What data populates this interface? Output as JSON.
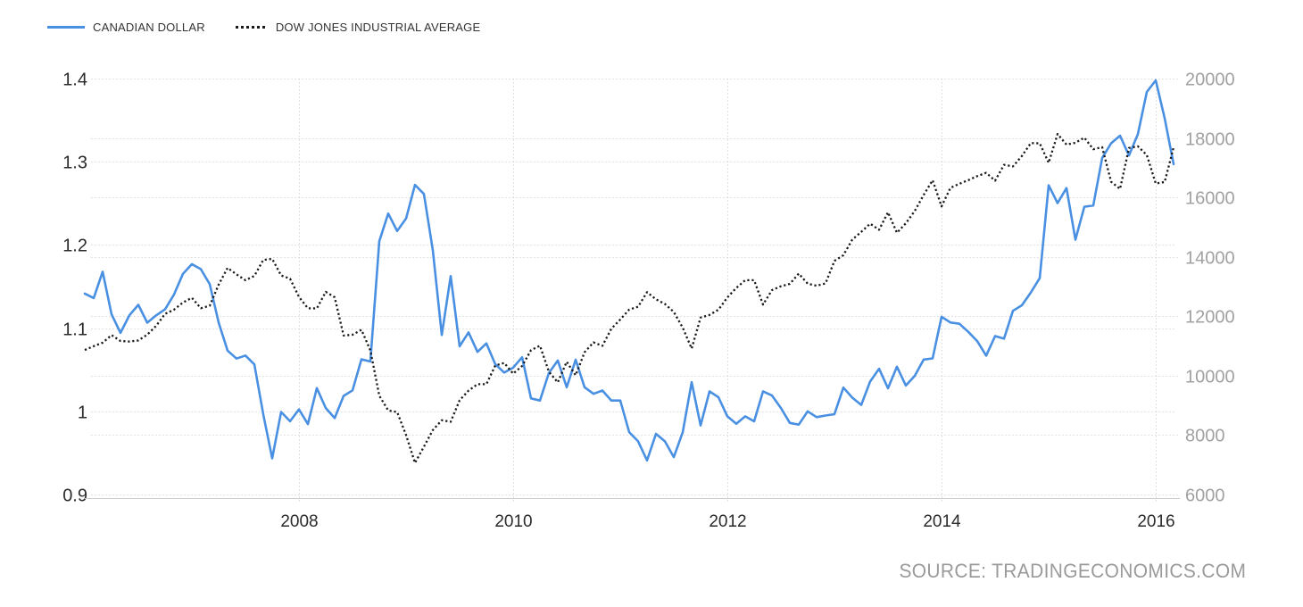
{
  "legend": {
    "items": [
      {
        "label": "CANADIAN DOLLAR",
        "style": "solid",
        "color": "#4a90e2"
      },
      {
        "label": "DOW JONES INDUSTRIAL AVERAGE",
        "style": "dotted",
        "color": "#1a1a1a"
      }
    ]
  },
  "source": {
    "text": "SOURCE: TRADINGECONOMICS.COM"
  },
  "chart_data": {
    "type": "line",
    "title": "",
    "xlabel": "",
    "ylabel_left": "",
    "ylabel_right": "",
    "grid": true,
    "legend_position": "top-left",
    "x_start": "2006-01",
    "x_end": "2016-03",
    "x_interval": "monthly",
    "x_ticks": [
      {
        "label": "2008",
        "month_index": 24
      },
      {
        "label": "2010",
        "month_index": 48
      },
      {
        "label": "2012",
        "month_index": 72
      },
      {
        "label": "2014",
        "month_index": 96
      },
      {
        "label": "2016",
        "month_index": 120
      }
    ],
    "left_axis": {
      "range": [
        0.9,
        1.4
      ],
      "ticks": [
        {
          "label": "1.4",
          "value": 1.4
        },
        {
          "label": "1.3",
          "value": 1.3
        },
        {
          "label": "1.2",
          "value": 1.2
        },
        {
          "label": "1.1",
          "value": 1.1
        },
        {
          "label": "1",
          "value": 1.0
        },
        {
          "label": "0.9",
          "value": 0.9
        }
      ]
    },
    "right_axis": {
      "range": [
        6000,
        20000
      ],
      "ticks": [
        {
          "label": "20000",
          "value": 20000
        },
        {
          "label": "18000",
          "value": 18000
        },
        {
          "label": "16000",
          "value": 16000
        },
        {
          "label": "14000",
          "value": 14000
        },
        {
          "label": "12000",
          "value": 12000
        },
        {
          "label": "10000",
          "value": 10000
        },
        {
          "label": "8000",
          "value": 8000
        },
        {
          "label": "6000",
          "value": 6000
        }
      ]
    },
    "series": [
      {
        "name": "CANADIAN DOLLAR",
        "slug": "canadian-dollar",
        "axis": "left",
        "color": "#4a90e2",
        "style": "solid",
        "values": [
          1.1415,
          1.1362,
          1.1678,
          1.1166,
          1.0943,
          1.1155,
          1.128,
          1.1065,
          1.1153,
          1.1227,
          1.1405,
          1.1653,
          1.1769,
          1.1709,
          1.1529,
          1.1066,
          1.073,
          1.0634,
          1.0671,
          1.0564,
          0.9963,
          0.9435,
          0.9993,
          0.9881,
          1.0022,
          0.9847,
          1.0279,
          1.004,
          0.9918,
          1.0186,
          1.0252,
          1.0626,
          1.0599,
          1.2045,
          1.2378,
          1.2167,
          1.2318,
          1.2722,
          1.2613,
          1.1935,
          1.0917,
          1.1625,
          1.0782,
          1.0949,
          1.0715,
          1.0816,
          1.0565,
          1.0466,
          1.0525,
          1.065,
          1.0156,
          1.013,
          1.046,
          1.061,
          1.029,
          1.062,
          1.029,
          1.021,
          1.025,
          1.013,
          1.013,
          0.975,
          0.964,
          0.941,
          0.973,
          0.964,
          0.945,
          0.975,
          1.035,
          0.983,
          1.024,
          1.017,
          0.994,
          0.985,
          0.994,
          0.988,
          1.024,
          1.019,
          1.004,
          0.986,
          0.984,
          1.0,
          0.993,
          0.995,
          0.9966,
          1.0285,
          1.0164,
          1.0077,
          1.0358,
          1.0512,
          1.0277,
          1.0536,
          1.031,
          1.0427,
          1.0622,
          1.0636,
          1.1136,
          1.1068,
          1.1053,
          1.0955,
          1.0843,
          1.067,
          1.0905,
          1.0873,
          1.1208,
          1.1275,
          1.1428,
          1.1601,
          1.2717,
          1.2503,
          1.2683,
          1.2063,
          1.2459,
          1.2474,
          1.3046,
          1.3222,
          1.3313,
          1.3075,
          1.3333,
          1.3839,
          1.3979,
          1.3523,
          1.2971
        ]
      },
      {
        "name": "DOW JONES INDUSTRIAL AVERAGE",
        "slug": "dow-jones",
        "axis": "right",
        "color": "#1a1a1a",
        "style": "dotted",
        "values": [
          10865,
          10993,
          11109,
          11367,
          11168,
          11150,
          11186,
          11381,
          11679,
          12080,
          12222,
          12463,
          12622,
          12269,
          12354,
          13063,
          13628,
          13409,
          13212,
          13358,
          13896,
          13930,
          13372,
          13265,
          12650,
          12266,
          12263,
          12820,
          12638,
          11350,
          11378,
          11544,
          10851,
          9325,
          8829,
          8776,
          8001,
          7063,
          7609,
          8168,
          8500,
          8447,
          9172,
          9496,
          9712,
          9713,
          10345,
          10428,
          10067,
          10325,
          10857,
          11009,
          10137,
          9774,
          10466,
          10015,
          10788,
          11118,
          11006,
          11578,
          11892,
          12226,
          12320,
          12811,
          12570,
          12414,
          12143,
          11614,
          10913,
          11955,
          12046,
          12218,
          12633,
          12952,
          13212,
          13214,
          12393,
          12880,
          13009,
          13091,
          13437,
          13096,
          13026,
          13104,
          13861,
          14054,
          14579,
          14840,
          15116,
          14910,
          15500,
          14810,
          15130,
          15546,
          16086,
          16577,
          15699,
          16322,
          16458,
          16581,
          16717,
          16827,
          16563,
          17098,
          17043,
          17391,
          17828,
          17823,
          17165,
          18133,
          17776,
          17841,
          18011,
          17620,
          17690,
          16528,
          16285,
          17664,
          17720,
          17425,
          16466,
          16517,
          17685
        ]
      }
    ]
  }
}
